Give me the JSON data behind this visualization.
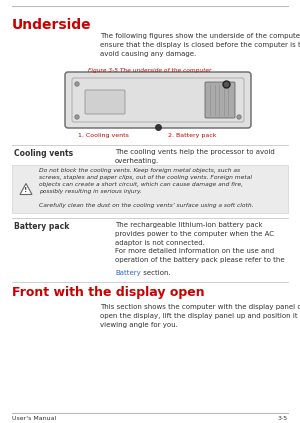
{
  "page_bg": "#ffffff",
  "line_color": "#bbbbbb",
  "heading1": "Underside",
  "heading1_color": "#cc0000",
  "heading2": "Front with the display open",
  "heading2_color": "#cc0000",
  "body_color": "#333333",
  "red_label_color": "#cc0000",
  "blue_link_color": "#3366cc",
  "figure_caption": "Figure 3-5 The underside of the computer",
  "label1": "1. Cooling vents",
  "label2": "2. Battery pack",
  "section1_term": "Cooling vents",
  "section1_def": "The cooling vents help the processor to avoid\noverheating.",
  "warning_text1": "Do not block the cooling vents. Keep foreign metal objects, such as\nscrews, staples and paper clips, out of the cooling vents. Foreign metal\nobjects can create a short circuit, which can cause damage and fire,\npossibly resulting in serious injury.",
  "warning_text2": "Carefully clean the dust on the cooling vents’ surface using a soft cloth.",
  "warning_bg": "#ebebeb",
  "section2_term": "Battery pack",
  "section2_def1": "The rechargeable lithium-ion battery pack\nprovides power to the computer when the AC\nadaptor is not connected.",
  "section2_def2a": "For more detailed information on the use and\noperation of the battery pack please refer to the\n",
  "section2_link": "Battery",
  "section2_def2b": " section.",
  "footer_left": "User's Manual",
  "footer_right": "3-5",
  "intro_text": "The following figures show the underside of the computer. You should\nensure that the display is closed before the computer is turned over to\navoid causing any damage.",
  "front_intro": "This section shows the computer with the display panel open. In order to\nopen the display, lift the display panel up and position it at a comfortable\nviewing angle for you."
}
